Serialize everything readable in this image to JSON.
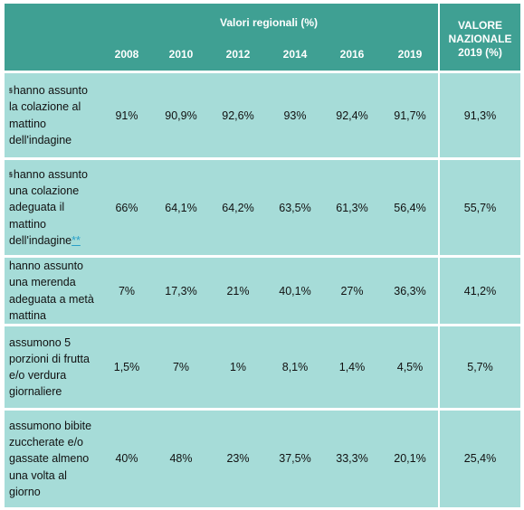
{
  "header": {
    "group_label": "Valori regionali (%)",
    "national_label_line1": "VALORE",
    "national_label_line2": "NAZIONALE",
    "national_label_line3": "2019 (%)",
    "years": [
      "2008",
      "2010",
      "2012",
      "2014",
      "2016",
      "2019"
    ]
  },
  "rows": [
    {
      "mark": "§",
      "label": "hanno assunto la colazione al mattino dell'indagine",
      "suffix": "",
      "values": [
        "91%",
        "90,9%",
        "92,6%",
        "93%",
        "92,4%",
        "91,7%"
      ],
      "national": "91,3%"
    },
    {
      "mark": "§",
      "label": "hanno assunto una colazione adeguata il mattino dell'indagine",
      "suffix": "**",
      "values": [
        "66%",
        "64,1%",
        "64,2%",
        "63,5%",
        "61,3%",
        "56,4%"
      ],
      "national": "55,7%"
    },
    {
      "mark": "",
      "label": "hanno assunto una merenda adeguata a metà mattina",
      "suffix": "",
      "values": [
        "7%",
        "17,3%",
        "21%",
        "40,1%",
        "27%",
        "36,3%"
      ],
      "national": "41,2%"
    },
    {
      "mark": "",
      "label": "assumono 5 porzioni di frutta e/o verdura giornaliere",
      "suffix": "",
      "values": [
        "1,5%",
        "7%",
        "1%",
        "8,1%",
        "1,4%",
        "4,5%"
      ],
      "national": "5,7%"
    },
    {
      "mark": "",
      "label": "assumono bibite zuccherate e/o gassate almeno una volta al giorno",
      "suffix": "",
      "values": [
        "40%",
        "48%",
        "23%",
        "37,5%",
        "33,3%",
        "20,1%"
      ],
      "national": "25,4%"
    }
  ]
}
